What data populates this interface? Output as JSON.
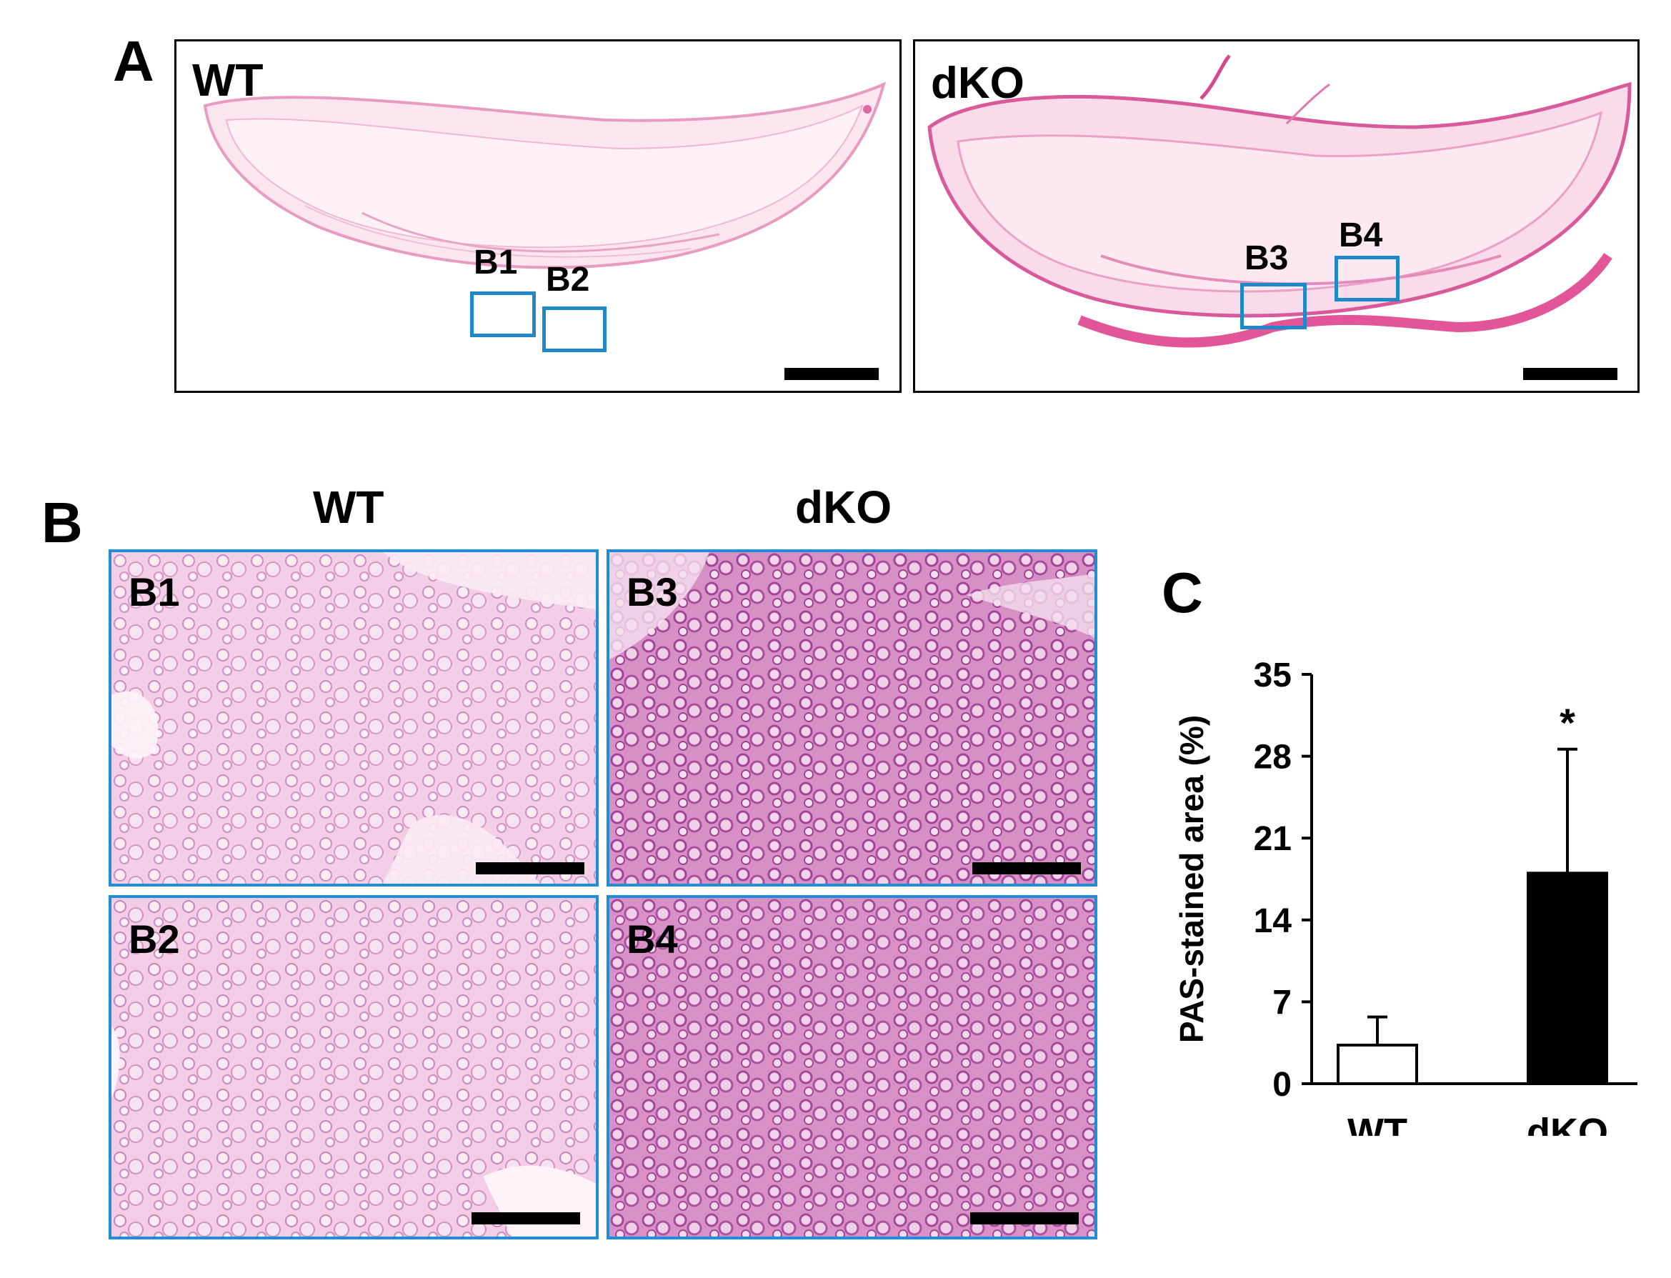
{
  "panel_labels": {
    "a": "A",
    "b": "B",
    "c": "C"
  },
  "panel_a": {
    "wt_label": "WT",
    "dko_label": "dKO",
    "roi": [
      "B1",
      "B2",
      "B3",
      "B4"
    ]
  },
  "panel_b": {
    "wt_header": "WT",
    "dko_header": "dKO",
    "tiles": [
      "B1",
      "B3",
      "B2",
      "B4"
    ]
  },
  "colors": {
    "roi_border": "#1e88c8",
    "tile_border": "#1e8fd6",
    "wt_bar": "#ffffff",
    "dko_bar": "#000000",
    "stain_light": "#f9d9ea",
    "stain_dark": "#b14fa3"
  },
  "chart_data": {
    "type": "bar",
    "categories": [
      "WT",
      "dKO"
    ],
    "values": [
      3.3,
      18.0
    ],
    "error_upper": [
      5.7,
      28.6
    ],
    "significance": [
      "",
      "*"
    ],
    "ylabel": "PAS-stained area (%)",
    "ylim": [
      0,
      35
    ],
    "yticks": [
      0,
      7,
      14,
      21,
      28,
      35
    ],
    "grid": false,
    "legend": "none"
  }
}
